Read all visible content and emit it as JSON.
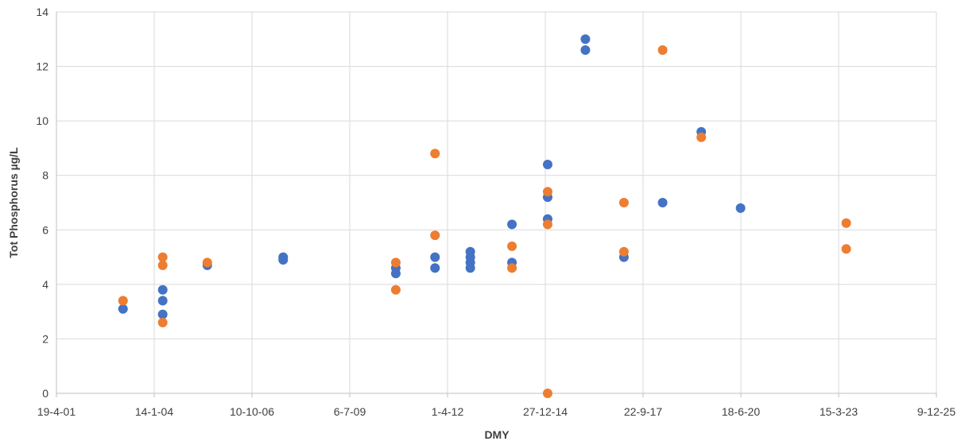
{
  "chart_data": {
    "type": "scatter",
    "title": "",
    "xlabel": "DMY",
    "ylabel": "Tot Phosphorus µg/L",
    "x_axis_type": "date",
    "x_tick_labels": [
      "19-4-01",
      "14-1-04",
      "10-10-06",
      "6-7-09",
      "1-4-12",
      "27-12-14",
      "22-9-17",
      "18-6-20",
      "15-3-23",
      "9-12-25"
    ],
    "x_ticks": [
      "2001-04-19",
      "2004-01-14",
      "2006-10-10",
      "2009-07-06",
      "2012-04-01",
      "2014-12-27",
      "2017-09-22",
      "2020-06-18",
      "2023-03-15",
      "2025-12-09"
    ],
    "xlim": [
      "2001-04-19",
      "2025-12-09"
    ],
    "ylim": [
      0,
      14
    ],
    "y_ticks": [
      0,
      2,
      4,
      6,
      8,
      10,
      12,
      14
    ],
    "grid": true,
    "legend": "none",
    "series": [
      {
        "color": "#4472C4",
        "points": [
          {
            "x": "2003-03-01",
            "y": 3.1
          },
          {
            "x": "2004-04-10",
            "y": 3.8
          },
          {
            "x": "2004-04-10",
            "y": 3.4
          },
          {
            "x": "2004-04-10",
            "y": 2.9
          },
          {
            "x": "2005-07-10",
            "y": 4.7
          },
          {
            "x": "2007-08-25",
            "y": 5.0
          },
          {
            "x": "2007-08-25",
            "y": 4.9
          },
          {
            "x": "2010-10-20",
            "y": 4.6
          },
          {
            "x": "2010-10-20",
            "y": 4.4
          },
          {
            "x": "2011-11-25",
            "y": 5.0
          },
          {
            "x": "2011-11-25",
            "y": 4.6
          },
          {
            "x": "2012-11-20",
            "y": 5.2
          },
          {
            "x": "2012-11-20",
            "y": 5.0
          },
          {
            "x": "2012-11-20",
            "y": 4.8
          },
          {
            "x": "2012-11-20",
            "y": 4.6
          },
          {
            "x": "2014-01-20",
            "y": 6.2
          },
          {
            "x": "2014-01-20",
            "y": 4.8
          },
          {
            "x": "2015-01-20",
            "y": 8.4
          },
          {
            "x": "2015-01-20",
            "y": 7.2
          },
          {
            "x": "2015-01-20",
            "y": 6.4
          },
          {
            "x": "2016-02-10",
            "y": 13.0
          },
          {
            "x": "2016-02-10",
            "y": 12.6
          },
          {
            "x": "2017-03-10",
            "y": 5.0
          },
          {
            "x": "2018-04-10",
            "y": 7.0
          },
          {
            "x": "2019-05-10",
            "y": 9.6
          },
          {
            "x": "2020-06-15",
            "y": 6.8
          }
        ]
      },
      {
        "color": "#ED7D31",
        "points": [
          {
            "x": "2003-03-01",
            "y": 3.4
          },
          {
            "x": "2004-04-10",
            "y": 5.0
          },
          {
            "x": "2004-04-10",
            "y": 4.7
          },
          {
            "x": "2004-04-10",
            "y": 2.6
          },
          {
            "x": "2005-07-10",
            "y": 4.8
          },
          {
            "x": "2010-10-20",
            "y": 4.8
          },
          {
            "x": "2010-10-20",
            "y": 3.8
          },
          {
            "x": "2011-11-25",
            "y": 8.8
          },
          {
            "x": "2011-11-25",
            "y": 5.8
          },
          {
            "x": "2014-01-20",
            "y": 5.4
          },
          {
            "x": "2014-01-20",
            "y": 4.6
          },
          {
            "x": "2015-01-20",
            "y": 7.4
          },
          {
            "x": "2015-01-20",
            "y": 6.2
          },
          {
            "x": "2015-01-20",
            "y": 0.0
          },
          {
            "x": "2017-03-10",
            "y": 7.0
          },
          {
            "x": "2017-03-10",
            "y": 5.2
          },
          {
            "x": "2018-04-10",
            "y": 12.6
          },
          {
            "x": "2019-05-10",
            "y": 9.4
          },
          {
            "x": "2023-06-01",
            "y": 6.25
          },
          {
            "x": "2023-06-01",
            "y": 5.3
          }
        ]
      }
    ]
  }
}
